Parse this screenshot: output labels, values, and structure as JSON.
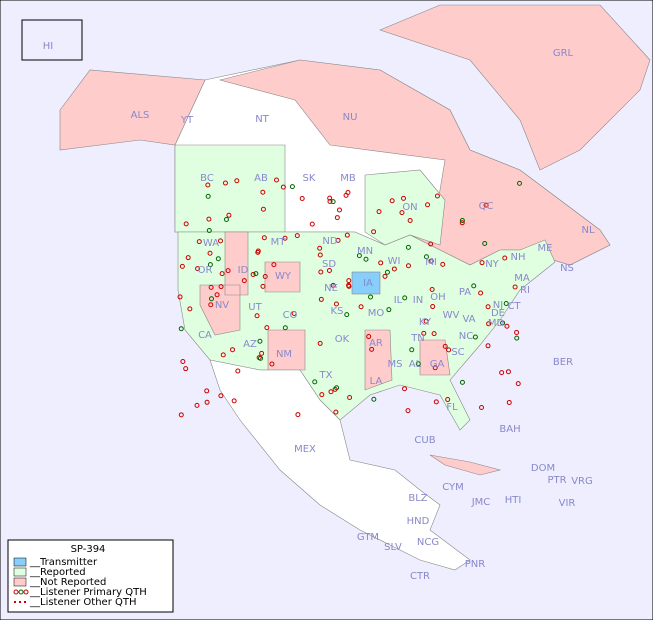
{
  "legend": {
    "title": "SP-394",
    "items": [
      "__Transmitter",
      "__Reported",
      "__Not Reported",
      "__Listener Primary QTH",
      "__Listener Other QTH"
    ]
  },
  "regions": [
    "HI",
    "ALS",
    "YT",
    "NT",
    "NU",
    "GRL",
    "BC",
    "AB",
    "SK",
    "MB",
    "ON",
    "QC",
    "NL",
    "NS",
    "WA",
    "MT",
    "ND",
    "MN",
    "WI",
    "MI",
    "OR",
    "ID",
    "WY",
    "SD",
    "IA",
    "NE",
    "IL",
    "IN",
    "OH",
    "PA",
    "NY",
    "NV",
    "UT",
    "CO",
    "KS",
    "MO",
    "KY",
    "WV",
    "VA",
    "MD",
    "NJ",
    "CT",
    "MA",
    "NH",
    "ME",
    "DE",
    "RI",
    "CA",
    "AZ",
    "NM",
    "OK",
    "AR",
    "TN",
    "NC",
    "SC",
    "MS",
    "AL",
    "GA",
    "TX",
    "LA",
    "FL",
    "MEX",
    "CUB",
    "BAH",
    "BER",
    "DOM",
    "PTR",
    "VRG",
    "HTI",
    "JMC",
    "CYM",
    "VIR",
    "BLZ",
    "HND",
    "GTM",
    "SLV",
    "NCG",
    "PNR",
    "CTR"
  ]
}
